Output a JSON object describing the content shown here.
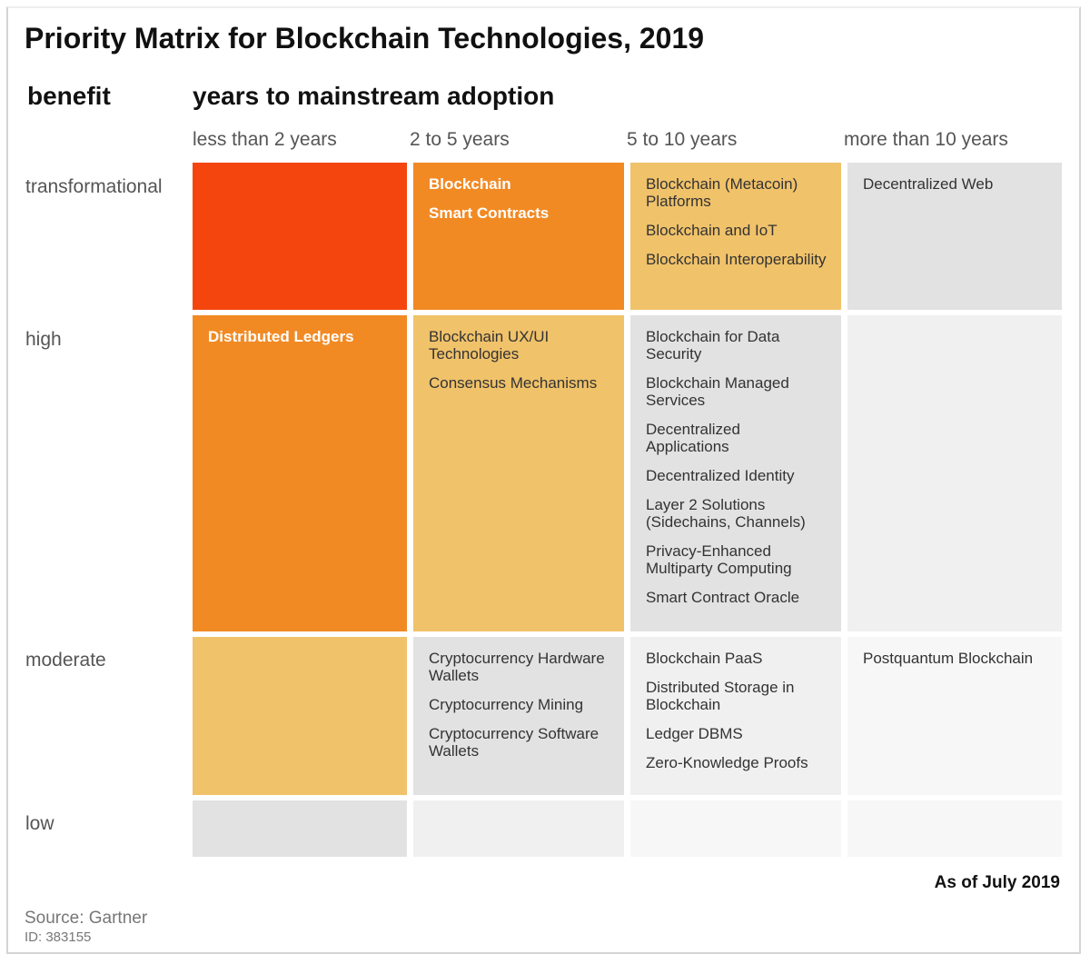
{
  "title": "Priority Matrix for Blockchain Technologies, 2019",
  "benefit_label": "benefit",
  "years_label": "years to mainstream adoption",
  "columns": [
    "less than 2 years",
    "2 to 5 years",
    "5 to 10 years",
    "more than 10 years"
  ],
  "rows": [
    "transformational",
    "high",
    "moderate",
    "low"
  ],
  "colors": {
    "red": "#F4450F",
    "orange": "#F28A24",
    "light_orange": "#F0C26A",
    "gray": "#E2E2E2",
    "light_gray": "#F0F0F0",
    "lightest_gray": "#F7F7F7"
  },
  "cells": [
    [
      {
        "color": "red",
        "bold": true,
        "items": []
      },
      {
        "color": "orange",
        "bold": true,
        "items": [
          "Blockchain",
          "Smart Contracts"
        ]
      },
      {
        "color": "light_orange",
        "bold": false,
        "items": [
          "Blockchain (Metacoin) Platforms",
          "Blockchain and IoT",
          "Blockchain Interoperability"
        ]
      },
      {
        "color": "gray",
        "bold": false,
        "items": [
          "Decentralized Web"
        ]
      }
    ],
    [
      {
        "color": "orange",
        "bold": true,
        "items": [
          "Distributed Ledgers"
        ]
      },
      {
        "color": "light_orange",
        "bold": false,
        "items": [
          "Blockchain UX/UI Technologies",
          "Consensus Mechanisms"
        ]
      },
      {
        "color": "gray",
        "bold": false,
        "items": [
          "Blockchain for Data Security",
          "Blockchain Managed Services",
          "Decentralized Applications",
          "Decentralized Identity",
          "Layer 2 Solutions (Sidechains, Channels)",
          "Privacy-Enhanced Multiparty Computing",
          "Smart Contract Oracle"
        ]
      },
      {
        "color": "light_gray",
        "bold": false,
        "items": []
      }
    ],
    [
      {
        "color": "light_orange",
        "bold": false,
        "items": []
      },
      {
        "color": "gray",
        "bold": false,
        "items": [
          "Cryptocurrency Hardware Wallets",
          "Cryptocurrency Mining",
          "Cryptocurrency Software Wallets"
        ]
      },
      {
        "color": "light_gray",
        "bold": false,
        "items": [
          "Blockchain PaaS",
          "Distributed Storage in Blockchain",
          "Ledger DBMS",
          "Zero-Knowledge Proofs"
        ]
      },
      {
        "color": "lightest_gray",
        "bold": false,
        "items": [
          "Postquantum Blockchain"
        ]
      }
    ],
    [
      {
        "color": "gray",
        "bold": false,
        "items": []
      },
      {
        "color": "light_gray",
        "bold": false,
        "items": []
      },
      {
        "color": "lightest_gray",
        "bold": false,
        "items": []
      },
      {
        "color": "lightest_gray",
        "bold": false,
        "items": []
      }
    ]
  ],
  "as_of": "As of July 2019",
  "source": "Source: Gartner",
  "id": "ID: 383155"
}
